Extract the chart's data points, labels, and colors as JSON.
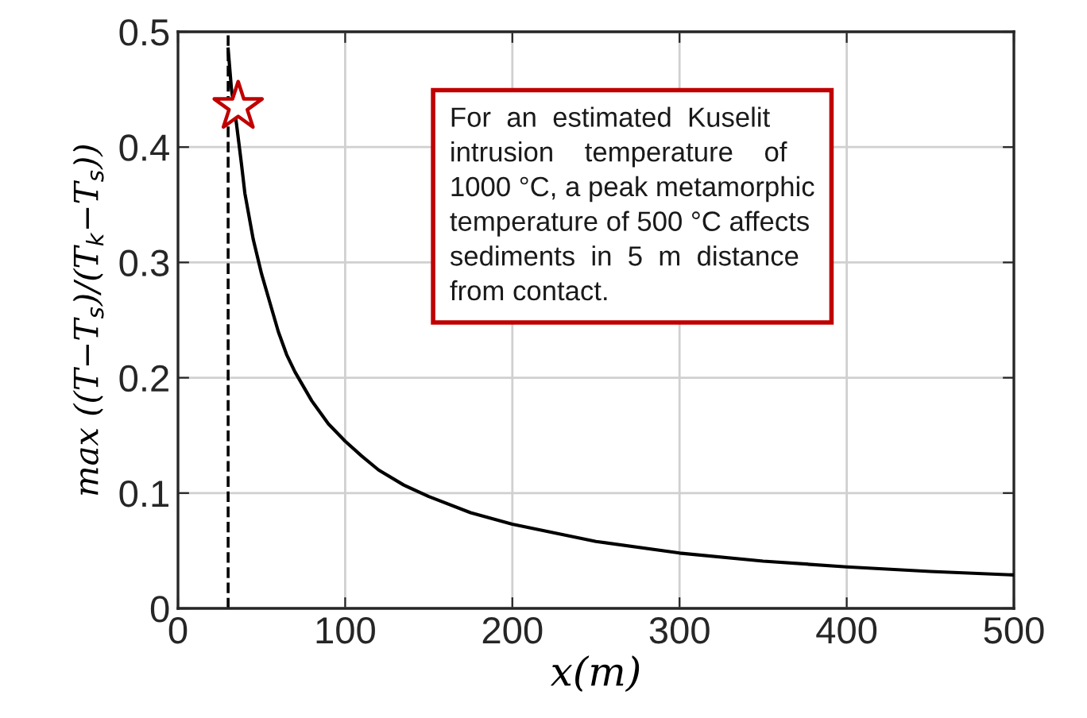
{
  "chart_data": {
    "type": "line",
    "xlabel": "x(m)",
    "ylabel": "max ((T−T$_{s}$)/(T$_{k}$−T$_{s}$))",
    "xlim": [
      0,
      500
    ],
    "xticks": [
      0,
      100,
      200,
      300,
      400,
      500
    ],
    "ylim": [
      0,
      0.5
    ],
    "yticks": [
      0,
      0.1,
      0.2,
      0.3,
      0.4,
      0.5
    ],
    "grid": true,
    "series": [
      {
        "color": "#000000",
        "x": [
          30,
          32,
          35,
          38,
          40,
          45,
          50,
          55,
          60,
          65,
          70,
          80,
          90,
          100,
          110,
          120,
          135,
          150,
          175,
          200,
          250,
          300,
          350,
          400,
          450,
          500
        ],
        "values": [
          0.485,
          0.45,
          0.42,
          0.385,
          0.36,
          0.32,
          0.29,
          0.265,
          0.24,
          0.22,
          0.205,
          0.18,
          0.16,
          0.145,
          0.132,
          0.12,
          0.107,
          0.097,
          0.083,
          0.073,
          0.058,
          0.048,
          0.041,
          0.036,
          0.032,
          0.029
        ]
      },
      {
        "type": "scatter",
        "color": "#c00000",
        "marker": "star",
        "x": [
          36
        ],
        "values": [
          0.435
        ]
      }
    ],
    "ref_lines": [
      {
        "axis": "x",
        "value": 30,
        "color": "#000000",
        "line_style": "dashed"
      }
    ],
    "annotations": [
      "For  an  estimated  Kuselit\nintrusion    temperature    of\n1000 °C, a peak metamorphic\ntemperature of 500 °C affects\nsediments  in  5  m  distance\nfrom contact."
    ]
  }
}
